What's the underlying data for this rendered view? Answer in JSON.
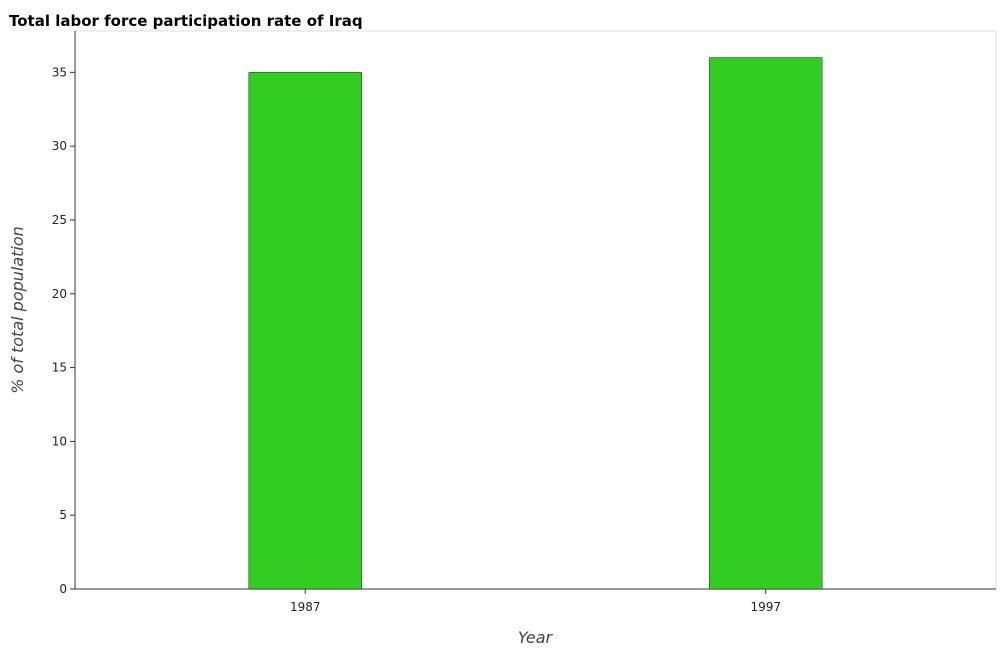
{
  "chart_data": {
    "type": "bar",
    "title": "Total labor force participation rate of Iraq",
    "xlabel": "Year",
    "ylabel": "% of total population",
    "categories": [
      "1987",
      "1997"
    ],
    "series": [
      {
        "values": [
          35.0,
          36.0
        ],
        "color": "#33cc22"
      }
    ],
    "ylim": [
      0,
      37.8
    ],
    "yticks": [
      0,
      5,
      10,
      15,
      20,
      25,
      30,
      35
    ],
    "ytick_labels": [
      "0",
      "5",
      "10",
      "15",
      "20",
      "25",
      "30",
      "35"
    ],
    "grid": false,
    "legend": "none"
  }
}
